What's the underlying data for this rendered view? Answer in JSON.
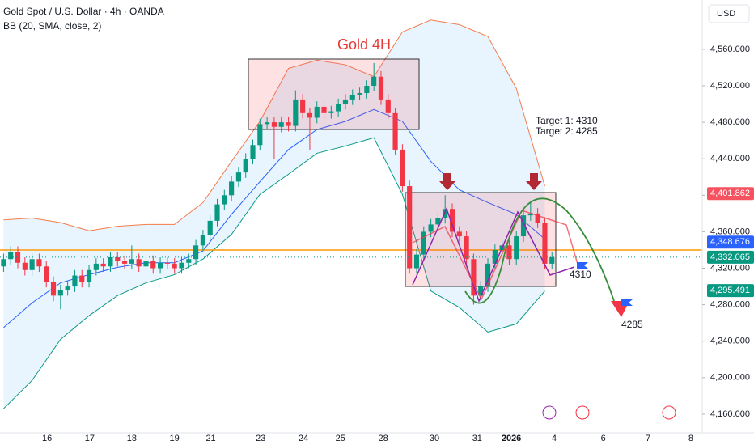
{
  "header": {
    "symbol": "Gold Spot / U.S. Dollar · 4h · OANDA",
    "indicator": "BB (20, SMA, close, 2)",
    "currency": "USD"
  },
  "chart_data": {
    "type": "candlestick",
    "title": "Gold 4H",
    "open": [
      4322,
      4330,
      4338,
      4326,
      4318,
      4330,
      4322,
      4305,
      4290,
      4296,
      4300,
      4312,
      4305,
      4318,
      4325,
      4322,
      4332,
      4328,
      4325,
      4330,
      4322,
      4328,
      4320,
      4326,
      4325,
      4320,
      4326,
      4330,
      4345,
      4356,
      4372,
      4390,
      4400,
      4415,
      4425,
      4440,
      4455,
      4478,
      4480,
      4475,
      4480,
      4476,
      4505,
      4490,
      4485,
      4497,
      4490,
      4492,
      4500,
      4505,
      4510,
      4512,
      4520,
      4530,
      4505,
      4490,
      4450,
      4410,
      4320,
      4335,
      4360,
      4368,
      4375,
      4385,
      4360,
      4355,
      4330,
      4290,
      4300,
      4325,
      4340,
      4345,
      4330,
      4355,
      4378,
      4380,
      4370,
      4325
    ],
    "high": [
      4336,
      4344,
      4344,
      4332,
      4336,
      4336,
      4328,
      4311,
      4302,
      4306,
      4318,
      4318,
      4324,
      4331,
      4331,
      4338,
      4338,
      4334,
      4345,
      4336,
      4334,
      4334,
      4332,
      4332,
      4331,
      4332,
      4336,
      4351,
      4362,
      4378,
      4396,
      4406,
      4421,
      4431,
      4446,
      4461,
      4484,
      4486,
      4486,
      4486,
      4486,
      4515,
      4511,
      4496,
      4503,
      4503,
      4498,
      4506,
      4511,
      4516,
      4518,
      4526,
      4545,
      4536,
      4511,
      4496,
      4456,
      4416,
      4341,
      4366,
      4374,
      4381,
      4400,
      4391,
      4366,
      4361,
      4336,
      4306,
      4331,
      4346,
      4351,
      4351,
      4361,
      4384,
      4392,
      4386,
      4376,
      4338
    ],
    "low": [
      4316,
      4324,
      4320,
      4312,
      4312,
      4316,
      4299,
      4284,
      4275,
      4290,
      4294,
      4299,
      4299,
      4312,
      4316,
      4316,
      4322,
      4319,
      4319,
      4316,
      4316,
      4314,
      4314,
      4319,
      4314,
      4314,
      4320,
      4324,
      4339,
      4350,
      4366,
      4384,
      4394,
      4409,
      4419,
      4434,
      4449,
      4472,
      4440,
      4469,
      4470,
      4470,
      4484,
      4450,
      4479,
      4484,
      4484,
      4486,
      4494,
      4499,
      4504,
      4506,
      4514,
      4499,
      4484,
      4444,
      4404,
      4314,
      4314,
      4329,
      4354,
      4362,
      4369,
      4354,
      4349,
      4324,
      4280,
      4284,
      4294,
      4319,
      4334,
      4324,
      4324,
      4349,
      4372,
      4364,
      4319,
      4319
    ],
    "close": [
      4330,
      4338,
      4326,
      4318,
      4330,
      4322,
      4305,
      4290,
      4296,
      4300,
      4312,
      4305,
      4318,
      4325,
      4322,
      4332,
      4328,
      4325,
      4330,
      4322,
      4328,
      4320,
      4326,
      4325,
      4320,
      4326,
      4330,
      4345,
      4356,
      4372,
      4390,
      4400,
      4415,
      4425,
      4440,
      4455,
      4478,
      4480,
      4475,
      4480,
      4476,
      4505,
      4490,
      4485,
      4497,
      4490,
      4492,
      4500,
      4505,
      4510,
      4512,
      4520,
      4530,
      4505,
      4490,
      4450,
      4410,
      4320,
      4335,
      4360,
      4368,
      4375,
      4385,
      4360,
      4355,
      4330,
      4290,
      4300,
      4325,
      4340,
      4345,
      4330,
      4355,
      4378,
      4380,
      4370,
      4325,
      4332
    ],
    "up_color": "#089981",
    "down_color": "#f23645",
    "bollinger": {
      "x": [
        0,
        4,
        8,
        12,
        16,
        20,
        24,
        28,
        32,
        36,
        40,
        44,
        48,
        52,
        56,
        60,
        64,
        68,
        72,
        76
      ],
      "upper": [
        4373,
        4375,
        4370,
        4361,
        4366,
        4368,
        4368,
        4392,
        4437,
        4481,
        4539,
        4548,
        4543,
        4530,
        4579,
        4592,
        4587,
        4574,
        4517,
        4410
      ],
      "middle": [
        4255,
        4282,
        4304,
        4313,
        4321,
        4326,
        4326,
        4339,
        4379,
        4415,
        4450,
        4472,
        4481,
        4494,
        4481,
        4437,
        4406,
        4392,
        4379,
        4352
      ],
      "lower": [
        4166,
        4197,
        4242,
        4268,
        4290,
        4304,
        4313,
        4330,
        4357,
        4401,
        4423,
        4446,
        4454,
        4463,
        4401,
        4295,
        4277,
        4250,
        4259,
        4295
      ],
      "upper_color": "#f57c4c",
      "middle_color": "#2962ff",
      "lower_color": "#089981",
      "fill": "#2196f3"
    },
    "hline": {
      "value": 4340,
      "color": "#ff9800"
    },
    "price_labels": [
      {
        "value": 4401.862,
        "label": "4,401.862",
        "color": "#f7525f"
      },
      {
        "value": 4348.676,
        "label": "4,348.676",
        "color": "#2962ff"
      },
      {
        "value": 4332.065,
        "label": "4,332.065",
        "color": "#089981"
      },
      {
        "value": 4295.491,
        "label": "4,295.491",
        "color": "#089981"
      }
    ],
    "annotations": {
      "target1": "Target 1: 4310",
      "target2": "Target 2: 4285",
      "level1": "4310",
      "level2": "4285"
    },
    "xlim": [
      -0.5,
      98.1
    ],
    "ylim": [
      4140,
      4614
    ],
    "xticks": [
      {
        "value": 6.1,
        "label": "16"
      },
      {
        "value": 12.1,
        "label": "17"
      },
      {
        "value": 18,
        "label": "18"
      },
      {
        "value": 24,
        "label": "19"
      },
      {
        "value": 29.1,
        "label": "21"
      },
      {
        "value": 36.1,
        "label": "23"
      },
      {
        "value": 42.1,
        "label": "24"
      },
      {
        "value": 47.3,
        "label": "25"
      },
      {
        "value": 53.3,
        "label": "28"
      },
      {
        "value": 60.5,
        "label": "30"
      },
      {
        "value": 66.5,
        "label": "31"
      },
      {
        "value": 71.3,
        "label": "2026"
      },
      {
        "value": 77.3,
        "label": "4"
      },
      {
        "value": 84.2,
        "label": "6"
      },
      {
        "value": 90.5,
        "label": "7"
      },
      {
        "value": 96.5,
        "label": "8"
      }
    ],
    "yticks": [
      {
        "value": 4160,
        "label": "4,160.000"
      },
      {
        "value": 4200,
        "label": "4,200.000"
      },
      {
        "value": 4240,
        "label": "4,240.000"
      },
      {
        "value": 4280,
        "label": "4,280.000"
      },
      {
        "value": 4320,
        "label": "4,320.000"
      },
      {
        "value": 4360,
        "label": "4,360.000"
      },
      {
        "value": 4400,
        "label": "4,400.000"
      },
      {
        "value": 4440,
        "label": "4,440.000"
      },
      {
        "value": 4480,
        "label": "4,480.000"
      },
      {
        "value": 4520,
        "label": "4,520.000"
      },
      {
        "value": 4560,
        "label": "4,560.000"
      }
    ]
  }
}
